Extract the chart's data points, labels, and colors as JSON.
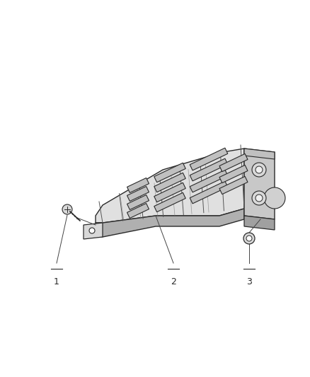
{
  "background_color": "#ffffff",
  "line_color": "#2a2a2a",
  "fig_width": 4.38,
  "fig_height": 5.33,
  "dpi": 100,
  "labels": [
    "1",
    "2",
    "3"
  ],
  "label_fontsize": 9,
  "callout_line_color": "#444444",
  "part_fill": "#e0e0e0",
  "part_edge": "#2a2a2a",
  "dark_fill": "#b0b0b0",
  "bracket_fill": "#c8c8c8",
  "slot_fill": "#999999",
  "rib_color": "#888888"
}
